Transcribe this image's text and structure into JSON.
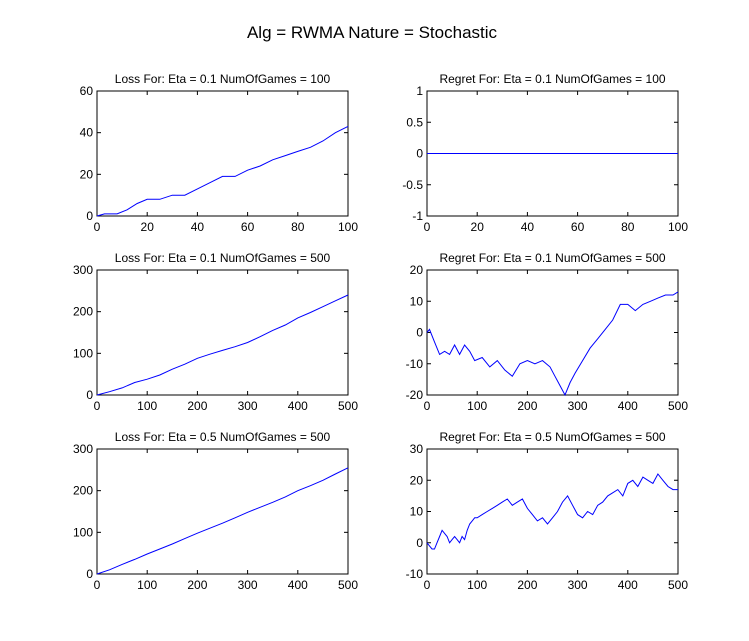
{
  "suptitle": "Alg = RWMA Nature = Stochastic",
  "line_color": "#0000ff",
  "chart_data": [
    {
      "type": "line",
      "title": "Loss For: Eta = 0.1 NumOfGames = 100",
      "xlim": [
        0,
        100
      ],
      "ylim": [
        0,
        60
      ],
      "xticks": [
        0,
        20,
        40,
        60,
        80,
        100
      ],
      "yticks": [
        0,
        20,
        40,
        60
      ],
      "xlabel": "",
      "ylabel": "",
      "series": [
        {
          "x": [
            0,
            3,
            8,
            12,
            16,
            20,
            25,
            30,
            35,
            40,
            45,
            50,
            55,
            60,
            65,
            70,
            75,
            80,
            85,
            90,
            95,
            100
          ],
          "y": [
            0,
            1,
            1,
            3,
            6,
            8,
            8,
            10,
            10,
            13,
            16,
            19,
            19,
            22,
            24,
            27,
            29,
            31,
            33,
            36,
            40,
            43
          ]
        }
      ]
    },
    {
      "type": "line",
      "title": "Regret For: Eta = 0.1 NumOfGames = 100",
      "xlim": [
        0,
        100
      ],
      "ylim": [
        -1,
        1
      ],
      "xticks": [
        0,
        20,
        40,
        60,
        80,
        100
      ],
      "yticks": [
        -1,
        -0.5,
        0,
        0.5,
        1
      ],
      "xlabel": "",
      "ylabel": "",
      "series": [
        {
          "x": [
            0,
            100
          ],
          "y": [
            0,
            0
          ]
        }
      ]
    },
    {
      "type": "line",
      "title": "Loss For: Eta = 0.1 NumOfGames = 500",
      "xlim": [
        0,
        500
      ],
      "ylim": [
        0,
        300
      ],
      "xticks": [
        0,
        100,
        200,
        300,
        400,
        500
      ],
      "yticks": [
        0,
        100,
        200,
        300
      ],
      "xlabel": "",
      "ylabel": "",
      "series": [
        {
          "x": [
            0,
            25,
            50,
            75,
            100,
            125,
            150,
            175,
            200,
            225,
            250,
            275,
            300,
            325,
            350,
            375,
            400,
            425,
            450,
            475,
            500
          ],
          "y": [
            0,
            8,
            17,
            30,
            38,
            48,
            62,
            74,
            88,
            98,
            107,
            116,
            126,
            140,
            155,
            168,
            185,
            198,
            212,
            226,
            240
          ]
        }
      ]
    },
    {
      "type": "line",
      "title": "Regret For: Eta = 0.1 NumOfGames = 500",
      "xlim": [
        0,
        500
      ],
      "ylim": [
        -20,
        20
      ],
      "xticks": [
        0,
        100,
        200,
        300,
        400,
        500
      ],
      "yticks": [
        -20,
        -10,
        0,
        10,
        20
      ],
      "xlabel": "",
      "ylabel": "",
      "series": [
        {
          "x": [
            0,
            5,
            15,
            25,
            35,
            45,
            55,
            65,
            75,
            85,
            95,
            110,
            125,
            140,
            155,
            170,
            185,
            200,
            215,
            230,
            245,
            255,
            265,
            275,
            285,
            295,
            310,
            325,
            340,
            355,
            370,
            385,
            400,
            415,
            430,
            445,
            460,
            475,
            490,
            500
          ],
          "y": [
            0,
            1,
            -3,
            -7,
            -6,
            -7,
            -4,
            -7,
            -4,
            -6,
            -9,
            -8,
            -11,
            -9,
            -12,
            -14,
            -10,
            -9,
            -10,
            -9,
            -11,
            -14,
            -17,
            -20,
            -16,
            -13,
            -9,
            -5,
            -2,
            1,
            4,
            9,
            9,
            7,
            9,
            10,
            11,
            12,
            12,
            13
          ]
        }
      ]
    },
    {
      "type": "line",
      "title": "Loss For: Eta = 0.5 NumOfGames = 500",
      "xlim": [
        0,
        500
      ],
      "ylim": [
        0,
        300
      ],
      "xticks": [
        0,
        100,
        200,
        300,
        400,
        500
      ],
      "yticks": [
        0,
        100,
        200,
        300
      ],
      "xlabel": "",
      "ylabel": "",
      "series": [
        {
          "x": [
            0,
            25,
            50,
            75,
            100,
            125,
            150,
            175,
            200,
            225,
            250,
            275,
            300,
            325,
            350,
            375,
            400,
            425,
            450,
            475,
            500
          ],
          "y": [
            0,
            10,
            23,
            35,
            48,
            60,
            72,
            85,
            98,
            110,
            122,
            135,
            148,
            160,
            172,
            185,
            200,
            212,
            225,
            240,
            255
          ]
        }
      ]
    },
    {
      "type": "line",
      "title": "Regret For: Eta = 0.5 NumOfGames = 500",
      "xlim": [
        0,
        500
      ],
      "ylim": [
        -10,
        30
      ],
      "xticks": [
        0,
        100,
        200,
        300,
        400,
        500
      ],
      "yticks": [
        -10,
        0,
        10,
        20,
        30
      ],
      "xlabel": "",
      "ylabel": "",
      "series": [
        {
          "x": [
            0,
            5,
            10,
            15,
            20,
            25,
            30,
            35,
            40,
            45,
            50,
            55,
            60,
            65,
            70,
            75,
            80,
            85,
            90,
            95,
            100,
            110,
            120,
            130,
            140,
            150,
            160,
            170,
            180,
            190,
            200,
            210,
            220,
            230,
            240,
            250,
            260,
            270,
            280,
            290,
            300,
            310,
            320,
            330,
            340,
            350,
            360,
            370,
            380,
            390,
            400,
            410,
            420,
            430,
            440,
            450,
            460,
            470,
            480,
            490,
            500
          ],
          "y": [
            0,
            -1,
            -2,
            -2,
            0,
            2,
            4,
            3,
            2,
            0,
            1,
            2,
            1,
            0,
            2,
            1,
            4,
            6,
            7,
            8,
            8,
            9,
            10,
            11,
            12,
            13,
            14,
            12,
            13,
            14,
            11,
            9,
            7,
            8,
            6,
            8,
            10,
            13,
            15,
            12,
            9,
            8,
            10,
            9,
            12,
            13,
            15,
            16,
            17,
            15,
            19,
            20,
            18,
            21,
            20,
            19,
            22,
            20,
            18,
            17,
            17
          ]
        }
      ]
    }
  ]
}
